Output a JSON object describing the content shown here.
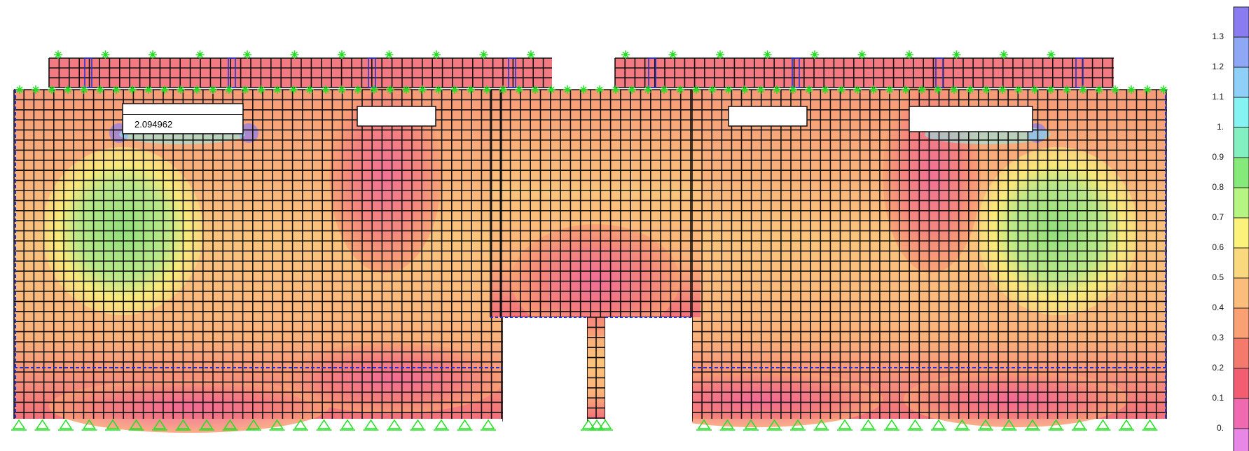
{
  "viewport": {
    "title": "",
    "probe_value": "2.094962"
  },
  "legend": {
    "labels": [
      "1.3",
      "1.2",
      "1.1",
      "1.",
      "0.9",
      "0.8",
      "0.7",
      "0.6",
      "0.5",
      "0.4",
      "0.3",
      "0.2",
      "0.1",
      "0."
    ],
    "colors": [
      "#8a7cf0",
      "#8fa8f5",
      "#8fd0f8",
      "#86f3f3",
      "#82f0c0",
      "#86ea7a",
      "#b6f582",
      "#faf27a",
      "#fad87e",
      "#fbbd7c",
      "#f9a074",
      "#f57a6e",
      "#f35d72",
      "#f06ab0",
      "#e987e6"
    ]
  },
  "colors": {
    "mesh": "#111111",
    "support": "#20e020",
    "boundary": "#1f2fd0",
    "contour_high": "#f06ab0",
    "contour_mid": "#fad87e",
    "contour_low": "#86ea7a"
  }
}
